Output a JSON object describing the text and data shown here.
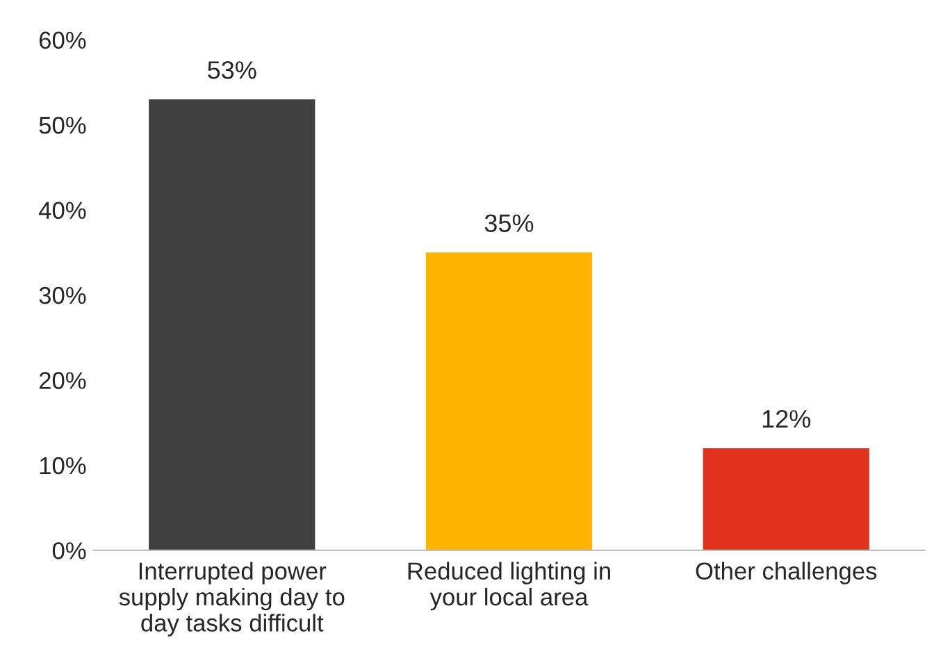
{
  "chart_data": {
    "type": "bar",
    "categories": [
      "Interrupted power supply making day to day tasks difficult",
      "Reduced lighting in your local area",
      "Other challenges"
    ],
    "values": [
      53,
      35,
      12
    ],
    "colors": [
      "#404040",
      "#ffb400",
      "#e0321c"
    ],
    "value_labels": [
      "53%",
      "35%",
      "12%"
    ],
    "ylim": [
      0,
      60
    ],
    "yticks": [
      {
        "value": 0,
        "label": "0%"
      },
      {
        "value": 10,
        "label": "10%"
      },
      {
        "value": 20,
        "label": "20%"
      },
      {
        "value": 30,
        "label": "30%"
      },
      {
        "value": 40,
        "label": "40%"
      },
      {
        "value": 50,
        "label": "50%"
      },
      {
        "value": 60,
        "label": "60%"
      }
    ],
    "grid": false,
    "legend": false
  }
}
